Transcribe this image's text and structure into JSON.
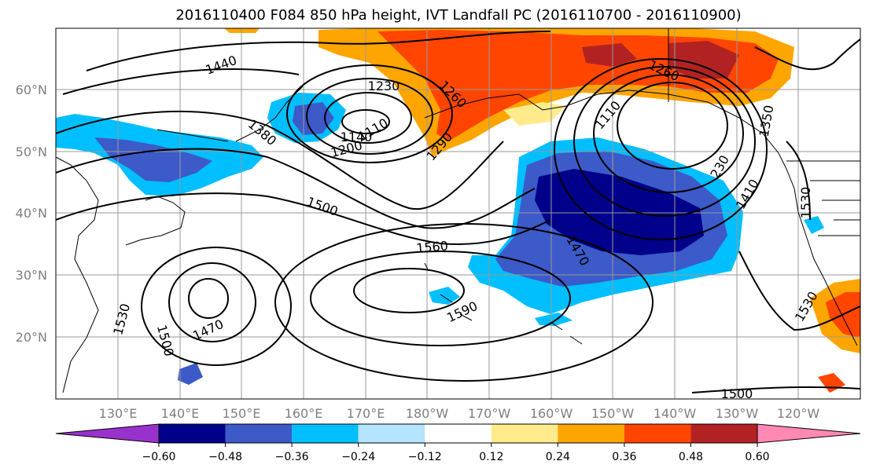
{
  "title": "2016110400 F084 850 hPa height, IVT Landfall PC (2016110700 - 2016110900)",
  "lat_labels": [
    "60°N",
    "50°N",
    "40°N",
    "30°N",
    "20°N"
  ],
  "lon_labels": [
    "130°E",
    "140°E",
    "150°E",
    "160°E",
    "170°E",
    "180°W",
    "170°W",
    "160°W",
    "150°W",
    "140°W",
    "130°W",
    "120°W"
  ],
  "colorbar": {
    "ticks": [
      "−0.60",
      "−0.48",
      "−0.36",
      "−0.24",
      "−0.12",
      "0.12",
      "0.24",
      "0.36",
      "0.48",
      "0.60"
    ],
    "colors": [
      "#9932cc",
      "#00008b",
      "#3c5ac8",
      "#00bfff",
      "#b4e4ff",
      "#ffffff",
      "#ffeb8c",
      "#ffa500",
      "#ff4500",
      "#b22222",
      "#ff88b4"
    ]
  },
  "contour_labels": {
    "c1440": "1440",
    "c1230": "1230",
    "c1260a": "1260",
    "c1260b": "1260",
    "c1380": "1380",
    "c1110a": "1110",
    "c1140": "1140",
    "c1200": "1200",
    "c1290": "1290",
    "c1110b": "1110",
    "c1350": "1350",
    "c1500a": "1500",
    "c1560": "1560",
    "c1470a": "1470",
    "c1410": "1410",
    "c1530a": "1530",
    "c1530b": "1530",
    "c1530c": "1530",
    "c1500b": "1500",
    "c1470b": "1470",
    "c1590": "1590",
    "c1500c": "1500",
    "c1230b": "230"
  }
}
